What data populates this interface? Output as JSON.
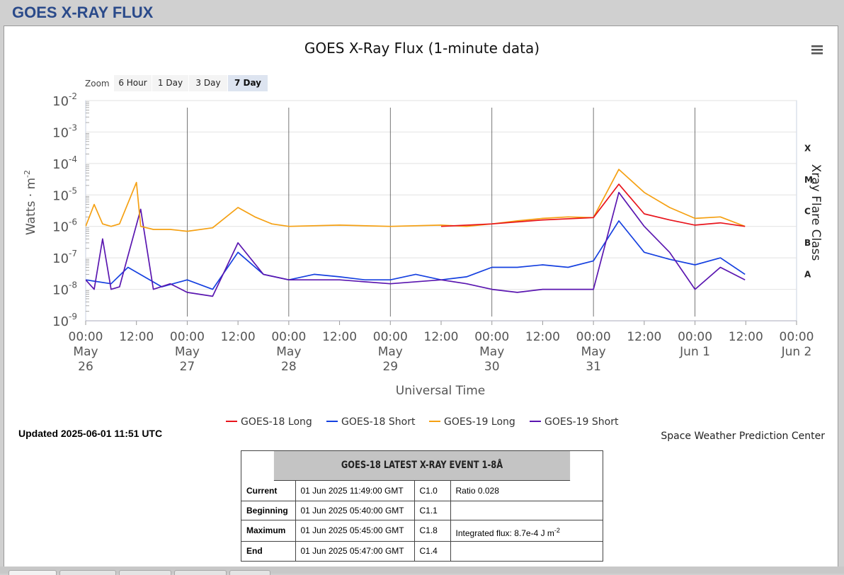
{
  "page_title": "GOES X-RAY FLUX",
  "menu_icon": "hamburger-menu-icon",
  "zoom": {
    "label": "Zoom",
    "buttons": [
      "6 Hour",
      "1 Day",
      "3 Day",
      "7 Day"
    ],
    "selected": "7 Day"
  },
  "updated": "Updated 2025-06-01 11:51 UTC",
  "center": "Space Weather Prediction Center",
  "event": {
    "header": "GOES-18 LATEST X-RAY EVENT 1-8Å",
    "rows": [
      {
        "label": "Current",
        "time": "01 Jun 2025 11:49:00 GMT",
        "cls": "C1.0",
        "extra": "Ratio 0.028"
      },
      {
        "label": "Beginning",
        "time": "01 Jun 2025 05:40:00 GMT",
        "cls": "C1.1",
        "extra": ""
      },
      {
        "label": "Maximum",
        "time": "01 Jun 2025 05:45:00 GMT",
        "cls": "C1.8",
        "extra": "Integrated flux: 8.7e-4 J m",
        "extra_sup": "-2"
      },
      {
        "label": "End",
        "time": "01 Jun 2025 05:47:00 GMT",
        "cls": "C1.4",
        "extra": ""
      }
    ]
  },
  "chart_data": {
    "type": "line",
    "title": "GOES X-Ray Flux (1-minute data)",
    "xlabel": "Universal Time",
    "ylabel": "Watts · m",
    "ylabel_sup": "-2",
    "y2label": "Xray Flare Class",
    "yscale": "log",
    "ylim": [
      1e-09,
      0.01
    ],
    "xlim": [
      "2025-05-26 00:00",
      "2025-06-02 00:00"
    ],
    "grid": true,
    "legend_position": "bottom-center",
    "y_ticks": [
      {
        "base": "10",
        "exp": "-2",
        "value": 0.01
      },
      {
        "base": "10",
        "exp": "-3",
        "value": 0.001
      },
      {
        "base": "10",
        "exp": "-4",
        "value": 0.0001
      },
      {
        "base": "10",
        "exp": "-5",
        "value": 1e-05
      },
      {
        "base": "10",
        "exp": "-6",
        "value": 1e-06
      },
      {
        "base": "10",
        "exp": "-7",
        "value": 1e-07
      },
      {
        "base": "10",
        "exp": "-8",
        "value": 1e-08
      },
      {
        "base": "10",
        "exp": "-9",
        "value": 1e-09
      }
    ],
    "flare_classes": [
      {
        "label": "X",
        "value": 0.000316
      },
      {
        "label": "M",
        "value": 3.16e-05
      },
      {
        "label": "C",
        "value": 3.16e-06
      },
      {
        "label": "B",
        "value": 3.16e-07
      },
      {
        "label": "A",
        "value": 3.16e-08
      }
    ],
    "x_ticks": [
      {
        "t": "2025-05-26 00:00",
        "lines": [
          "00:00",
          "May",
          "26"
        ]
      },
      {
        "t": "2025-05-26 12:00",
        "lines": [
          "12:00"
        ]
      },
      {
        "t": "2025-05-27 00:00",
        "lines": [
          "00:00",
          "May",
          "27"
        ]
      },
      {
        "t": "2025-05-27 12:00",
        "lines": [
          "12:00"
        ]
      },
      {
        "t": "2025-05-28 00:00",
        "lines": [
          "00:00",
          "May",
          "28"
        ]
      },
      {
        "t": "2025-05-28 12:00",
        "lines": [
          "12:00"
        ]
      },
      {
        "t": "2025-05-29 00:00",
        "lines": [
          "00:00",
          "May",
          "29"
        ]
      },
      {
        "t": "2025-05-29 12:00",
        "lines": [
          "12:00"
        ]
      },
      {
        "t": "2025-05-30 00:00",
        "lines": [
          "00:00",
          "May",
          "30"
        ]
      },
      {
        "t": "2025-05-30 12:00",
        "lines": [
          "12:00"
        ]
      },
      {
        "t": "2025-05-31 00:00",
        "lines": [
          "00:00",
          "May",
          "31"
        ]
      },
      {
        "t": "2025-05-31 12:00",
        "lines": [
          "12:00"
        ]
      },
      {
        "t": "2025-06-01 00:00",
        "lines": [
          "00:00",
          "Jun 1"
        ]
      },
      {
        "t": "2025-06-01 12:00",
        "lines": [
          "12:00"
        ]
      },
      {
        "t": "2025-06-02 00:00",
        "lines": [
          "00:00",
          "Jun 2"
        ]
      }
    ],
    "series": [
      {
        "name": "GOES-18 Long",
        "color": "#e8141c",
        "x": [
          "2025-05-29 12:00",
          "2025-05-30 00:00",
          "2025-05-30 12:00",
          "2025-05-31 00:00",
          "2025-05-31 06:00",
          "2025-05-31 12:00",
          "2025-05-31 18:00",
          "2025-06-01 00:00",
          "2025-06-01 06:00",
          "2025-06-01 11:49"
        ],
        "y": [
          1e-06,
          1.2e-06,
          1.6e-06,
          1.9e-06,
          2.2e-05,
          2.5e-06,
          1.6e-06,
          1.1e-06,
          1.3e-06,
          1e-06
        ]
      },
      {
        "name": "GOES-18 Short",
        "color": "#1540e0",
        "x": [
          "2025-05-26 00:00",
          "2025-05-26 06:00",
          "2025-05-26 10:00",
          "2025-05-26 18:00",
          "2025-05-27 00:00",
          "2025-05-27 06:00",
          "2025-05-27 12:00",
          "2025-05-27 18:00",
          "2025-05-28 00:00",
          "2025-05-28 06:00",
          "2025-05-28 12:00",
          "2025-05-28 18:00",
          "2025-05-29 00:00",
          "2025-05-29 06:00",
          "2025-05-29 12:00",
          "2025-05-29 18:00",
          "2025-05-30 00:00",
          "2025-05-30 06:00",
          "2025-05-30 12:00",
          "2025-05-30 18:00",
          "2025-05-31 00:00",
          "2025-05-31 06:00",
          "2025-05-31 12:00",
          "2025-05-31 18:00",
          "2025-06-01 00:00",
          "2025-06-01 06:00",
          "2025-06-01 11:49"
        ],
        "y": [
          2e-08,
          1.5e-08,
          5e-08,
          1.2e-08,
          2e-08,
          1e-08,
          1.5e-07,
          3e-08,
          2e-08,
          3e-08,
          2.5e-08,
          2e-08,
          2e-08,
          3e-08,
          2e-08,
          2.5e-08,
          5e-08,
          5e-08,
          6e-08,
          5e-08,
          8e-08,
          1.5e-06,
          1.5e-07,
          9e-08,
          6e-08,
          1e-07,
          3e-08
        ]
      },
      {
        "name": "GOES-19 Long",
        "color": "#f5a012",
        "x": [
          "2025-05-26 00:00",
          "2025-05-26 02:00",
          "2025-05-26 04:00",
          "2025-05-26 06:00",
          "2025-05-26 08:00",
          "2025-05-26 12:00",
          "2025-05-26 13:00",
          "2025-05-26 16:00",
          "2025-05-26 20:00",
          "2025-05-27 00:00",
          "2025-05-27 06:00",
          "2025-05-27 12:00",
          "2025-05-27 16:00",
          "2025-05-27 20:00",
          "2025-05-28 00:00",
          "2025-05-28 12:00",
          "2025-05-29 00:00",
          "2025-05-29 12:00",
          "2025-05-29 18:00",
          "2025-05-30 00:00",
          "2025-05-30 06:00",
          "2025-05-30 12:00",
          "2025-05-30 18:00",
          "2025-05-31 00:00",
          "2025-05-31 06:00",
          "2025-05-31 12:00",
          "2025-05-31 18:00",
          "2025-06-01 00:00",
          "2025-06-01 06:00",
          "2025-06-01 11:49"
        ],
        "y": [
          1e-06,
          5e-06,
          1.2e-06,
          1e-06,
          1.2e-06,
          2.5e-05,
          1e-06,
          8e-07,
          8e-07,
          7e-07,
          9e-07,
          4e-06,
          2e-06,
          1.2e-06,
          1e-06,
          1.1e-06,
          1e-06,
          1.1e-06,
          1e-06,
          1.2e-06,
          1.5e-06,
          1.8e-06,
          2e-06,
          1.9e-06,
          6.5e-05,
          1.2e-05,
          4e-06,
          1.8e-06,
          2e-06,
          1e-06
        ]
      },
      {
        "name": "GOES-19 Short",
        "color": "#5a16b0",
        "x": [
          "2025-05-26 00:00",
          "2025-05-26 02:00",
          "2025-05-26 04:00",
          "2025-05-26 06:00",
          "2025-05-26 08:00",
          "2025-05-26 13:00",
          "2025-05-26 16:00",
          "2025-05-26 20:00",
          "2025-05-27 00:00",
          "2025-05-27 06:00",
          "2025-05-27 12:00",
          "2025-05-27 18:00",
          "2025-05-28 00:00",
          "2025-05-28 12:00",
          "2025-05-29 00:00",
          "2025-05-29 12:00",
          "2025-05-29 18:00",
          "2025-05-30 00:00",
          "2025-05-30 06:00",
          "2025-05-30 12:00",
          "2025-05-30 18:00",
          "2025-05-31 00:00",
          "2025-05-31 06:00",
          "2025-05-31 12:00",
          "2025-05-31 18:00",
          "2025-06-01 00:00",
          "2025-06-01 06:00",
          "2025-06-01 11:49"
        ],
        "y": [
          2e-08,
          1e-08,
          4e-07,
          1e-08,
          1.2e-08,
          3.5e-06,
          1e-08,
          1.5e-08,
          8e-09,
          6e-09,
          3e-07,
          3e-08,
          2e-08,
          2e-08,
          1.5e-08,
          2e-08,
          1.5e-08,
          1e-08,
          8e-09,
          1e-08,
          1e-08,
          1e-08,
          1.2e-05,
          1e-06,
          1.5e-07,
          1e-08,
          5e-08,
          2e-08
        ]
      }
    ]
  }
}
